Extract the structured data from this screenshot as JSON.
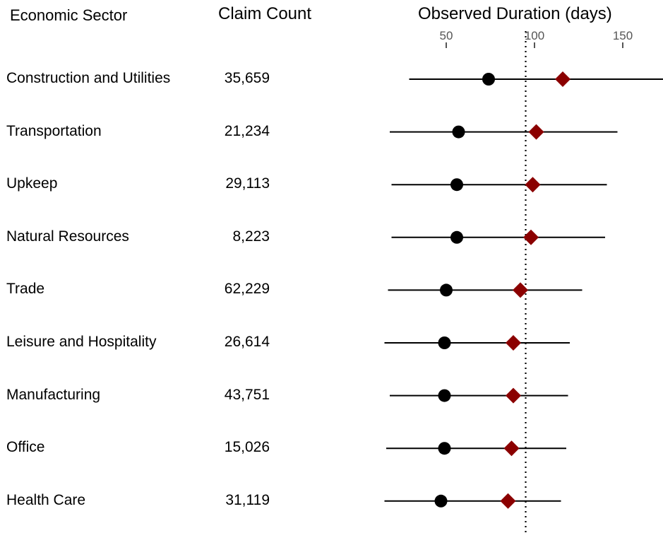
{
  "headers": {
    "sector": "Economic Sector",
    "count": "Claim Count",
    "axis": "Observed Duration (days)"
  },
  "chart_data": {
    "type": "scatter",
    "xlabel": "Observed Duration (days)",
    "x_ticks": [
      50,
      100,
      150
    ],
    "xlim": [
      2,
      173
    ],
    "reference_line": 95,
    "rows": [
      {
        "sector": "Construction and Utilities",
        "count": "35,659",
        "low": 29,
        "circle": 74,
        "diamond": 116,
        "high": 173
      },
      {
        "sector": "Transportation",
        "count": "21,234",
        "low": 18,
        "circle": 57,
        "diamond": 101,
        "high": 147
      },
      {
        "sector": "Upkeep",
        "count": "29,113",
        "low": 19,
        "circle": 56,
        "diamond": 99,
        "high": 141
      },
      {
        "sector": "Natural Resources",
        "count": "8,223",
        "low": 19,
        "circle": 56,
        "diamond": 98,
        "high": 140
      },
      {
        "sector": "Trade",
        "count": "62,229",
        "low": 17,
        "circle": 50,
        "diamond": 92,
        "high": 127
      },
      {
        "sector": "Leisure and Hospitality",
        "count": "26,614",
        "low": 15,
        "circle": 49,
        "diamond": 88,
        "high": 120
      },
      {
        "sector": "Manufacturing",
        "count": "43,751",
        "low": 18,
        "circle": 49,
        "diamond": 88,
        "high": 119
      },
      {
        "sector": "Office",
        "count": "15,026",
        "low": 16,
        "circle": 49,
        "diamond": 87,
        "high": 118
      },
      {
        "sector": "Health Care",
        "count": "31,119",
        "low": 15,
        "circle": 47,
        "diamond": 85,
        "high": 115
      }
    ]
  },
  "colors": {
    "circle": "#000000",
    "diamond": "#8B0000",
    "line": "#000000",
    "tick": "#555555"
  }
}
